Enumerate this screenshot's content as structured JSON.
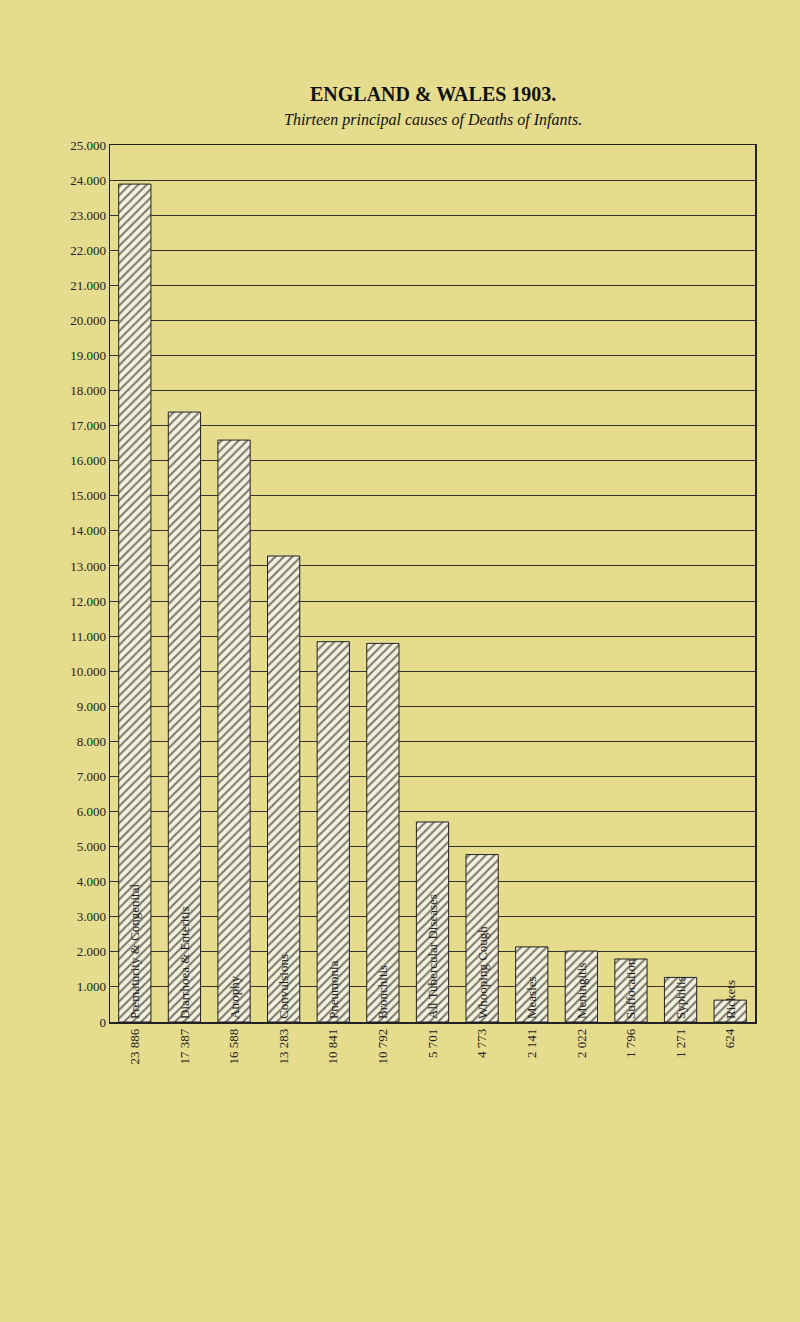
{
  "chart_data": {
    "type": "bar",
    "title": "ENGLAND & WALES 1903.",
    "subtitle": "Thirteen principal causes of Deaths of Infants.",
    "categories": [
      "Prematurity & Congenital",
      "Diarrhoea & Enteritis",
      "Atrophy",
      "Convulsions",
      "Pneumonia",
      "Bronchitis",
      "All Tubercular Diseases",
      "Whooping Cough",
      "Measles",
      "Meningitis",
      "Suffocation",
      "Syphilis",
      "Rickets"
    ],
    "values": [
      23886,
      17387,
      16588,
      13283,
      10841,
      10792,
      5701,
      4773,
      2141,
      2022,
      1796,
      1271,
      624
    ],
    "value_labels": [
      "23 886",
      "17 387",
      "16 588",
      "13 283",
      "10 841",
      "10 792",
      "5 701",
      "4 773",
      "2 141",
      "2 022",
      "1 796",
      "1 271",
      "624"
    ],
    "data_labels": true,
    "color": "#7a7a70",
    "ylim": [
      0,
      25000
    ],
    "yticks": [
      0,
      {
        "value": 1000,
        "label": "1.000"
      },
      {
        "value": 2000,
        "label": "2.000"
      },
      {
        "value": 3000,
        "label": "3.000"
      },
      {
        "value": 4000,
        "label": "4.000"
      },
      {
        "value": 5000,
        "label": "5.000"
      },
      {
        "value": 6000,
        "label": "6.000"
      },
      {
        "value": 7000,
        "label": "7.000"
      },
      {
        "value": 8000,
        "label": "8.000"
      },
      {
        "value": 9000,
        "label": "9.000"
      },
      {
        "value": 10000,
        "label": "10.000"
      },
      {
        "value": 11000,
        "label": "11.000"
      },
      {
        "value": 12000,
        "label": "12.000"
      },
      {
        "value": 13000,
        "label": "13.000"
      },
      {
        "value": 14000,
        "label": "14.000"
      },
      {
        "value": 15000,
        "label": "15.000"
      },
      {
        "value": 16000,
        "label": "16.000"
      },
      {
        "value": 17000,
        "label": "17.000"
      },
      {
        "value": 18000,
        "label": "18.000"
      },
      {
        "value": 19000,
        "label": "19.000"
      },
      {
        "value": 20000,
        "label": "20.000"
      },
      {
        "value": 21000,
        "label": "21.000"
      },
      {
        "value": 22000,
        "label": "22.000"
      },
      {
        "value": 23000,
        "label": "23.000"
      },
      {
        "value": 24000,
        "label": "24.000"
      },
      {
        "value": 25000,
        "label": "25.000"
      }
    ],
    "grid": true
  }
}
